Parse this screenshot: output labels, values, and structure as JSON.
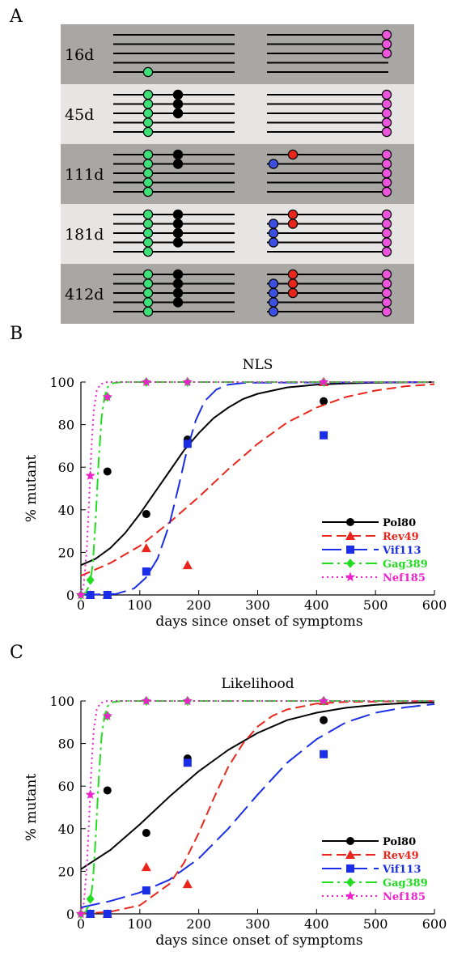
{
  "panels": {
    "a": "A",
    "b": "B",
    "c": "C"
  },
  "panelA": {
    "rows": [
      {
        "label": "16d",
        "shade": "#a9a7a4",
        "lines": 5,
        "green": [
          4
        ],
        "black": [],
        "blue": [],
        "red": [],
        "magenta": [
          0,
          1,
          2
        ]
      },
      {
        "label": "45d",
        "shade": "#e6e5e3",
        "lines": 5,
        "green": [
          0,
          1,
          2,
          3,
          4
        ],
        "black": [
          0,
          1,
          2
        ],
        "blue": [],
        "red": [],
        "magenta": [
          0,
          1,
          2,
          3,
          4
        ]
      },
      {
        "label": "111d",
        "shade": "#a9a7a4",
        "lines": 5,
        "green": [
          0,
          1,
          2,
          3,
          4
        ],
        "black": [
          0,
          1
        ],
        "blue": [
          1
        ],
        "red": [
          0
        ],
        "magenta": [
          0,
          1,
          2,
          3,
          4
        ]
      },
      {
        "label": "181d",
        "shade": "#e6e5e3",
        "lines": 5,
        "green": [
          0,
          1,
          2,
          3,
          4
        ],
        "black": [
          0,
          1,
          2,
          3
        ],
        "blue": [
          1,
          2,
          3
        ],
        "red": [
          0,
          1
        ],
        "magenta": [
          0,
          1,
          2,
          3,
          4
        ]
      },
      {
        "label": "412d",
        "shade": "#a9a7a4",
        "lines": 5,
        "green": [
          0,
          1,
          2,
          3,
          4
        ],
        "black": [
          0,
          1,
          2,
          3
        ],
        "blue": [
          1,
          2,
          3,
          4
        ],
        "red": [
          0,
          1,
          2
        ],
        "magenta": [
          0,
          1,
          2,
          3,
          4
        ]
      }
    ]
  },
  "colors": {
    "Pol80": "#000000",
    "Rev49": "#e8261c",
    "Vif113": "#1a2ee6",
    "Gag389": "#22dd22",
    "Nef185": "#ee22cc",
    "dotGreen": "#3fe07a",
    "dotBlack": "#000000",
    "dotBlue": "#3b4fe0",
    "dotRed": "#e8261c",
    "dotMagenta": "#ee55dd"
  },
  "chart_data": [
    {
      "type": "line",
      "title": "NLS",
      "xlabel": "days since onset of symptoms",
      "ylabel": "% mutant",
      "xlim": [
        0,
        600
      ],
      "ylim": [
        0,
        100
      ],
      "xticks": [
        0,
        100,
        200,
        300,
        400,
        500,
        600
      ],
      "yticks": [
        0,
        20,
        40,
        60,
        80,
        100
      ],
      "legend_position": "right",
      "series": [
        {
          "name": "Pol80",
          "marker": "circle",
          "dash": "solid",
          "points": [
            [
              16,
              0
            ],
            [
              45,
              58
            ],
            [
              111,
              38
            ],
            [
              181,
              73
            ],
            [
              412,
              91
            ]
          ],
          "curve": [
            [
              0,
              14
            ],
            [
              25,
              17
            ],
            [
              50,
              22
            ],
            [
              75,
              29
            ],
            [
              100,
              38
            ],
            [
              125,
              48
            ],
            [
              150,
              58
            ],
            [
              175,
              68
            ],
            [
              200,
              76
            ],
            [
              225,
              83
            ],
            [
              250,
              88
            ],
            [
              275,
              92
            ],
            [
              300,
              94.5
            ],
            [
              350,
              97.5
            ],
            [
              400,
              98.8
            ],
            [
              450,
              99.4
            ],
            [
              500,
              99.7
            ],
            [
              600,
              100
            ]
          ]
        },
        {
          "name": "Rev49",
          "marker": "triangle",
          "dash": "dashed",
          "points": [
            [
              16,
              0
            ],
            [
              45,
              0
            ],
            [
              111,
              22
            ],
            [
              181,
              14
            ],
            [
              412,
              100
            ]
          ],
          "curve": [
            [
              0,
              9
            ],
            [
              50,
              15
            ],
            [
              100,
              23
            ],
            [
              150,
              34
            ],
            [
              200,
              46
            ],
            [
              250,
              59
            ],
            [
              300,
              71
            ],
            [
              350,
              81
            ],
            [
              400,
              88
            ],
            [
              450,
              93
            ],
            [
              500,
              96
            ],
            [
              550,
              98
            ],
            [
              600,
              99
            ]
          ]
        },
        {
          "name": "Vif113",
          "marker": "square",
          "dash": "longdash",
          "points": [
            [
              16,
              0
            ],
            [
              45,
              0
            ],
            [
              111,
              11
            ],
            [
              181,
              71
            ],
            [
              412,
              75
            ]
          ],
          "curve": [
            [
              0,
              0
            ],
            [
              60,
              0.5
            ],
            [
              90,
              3
            ],
            [
              110,
              8
            ],
            [
              130,
              17
            ],
            [
              150,
              33
            ],
            [
              165,
              50
            ],
            [
              180,
              68
            ],
            [
              195,
              82
            ],
            [
              210,
              91
            ],
            [
              230,
              96.5
            ],
            [
              250,
              98.8
            ],
            [
              280,
              99.7
            ],
            [
              600,
              100
            ]
          ]
        },
        {
          "name": "Gag389",
          "marker": "diamond",
          "dash": "dashdot",
          "points": [
            [
              0,
              0
            ],
            [
              16,
              7
            ],
            [
              45,
              93
            ],
            [
              111,
              100
            ],
            [
              181,
              100
            ],
            [
              412,
              100
            ]
          ],
          "curve": [
            [
              0,
              0
            ],
            [
              8,
              1
            ],
            [
              15,
              5
            ],
            [
              20,
              14
            ],
            [
              25,
              35
            ],
            [
              30,
              62
            ],
            [
              35,
              83
            ],
            [
              40,
              93
            ],
            [
              45,
              97.5
            ],
            [
              55,
              99.5
            ],
            [
              70,
              100
            ],
            [
              600,
              100
            ]
          ]
        },
        {
          "name": "Nef185",
          "marker": "star",
          "dash": "dotted",
          "points": [
            [
              0,
              0
            ],
            [
              16,
              56
            ],
            [
              45,
              93
            ],
            [
              111,
              100
            ],
            [
              181,
              100
            ],
            [
              412,
              100
            ]
          ],
          "curve": [
            [
              0,
              0
            ],
            [
              5,
              5
            ],
            [
              10,
              22
            ],
            [
              14,
              45
            ],
            [
              18,
              70
            ],
            [
              22,
              87
            ],
            [
              27,
              96
            ],
            [
              33,
              99
            ],
            [
              45,
              100
            ],
            [
              600,
              100
            ]
          ]
        }
      ]
    },
    {
      "type": "line",
      "title": "Likelihood",
      "xlabel": "days since onset of symptoms",
      "ylabel": "% mutant",
      "xlim": [
        0,
        600
      ],
      "ylim": [
        0,
        100
      ],
      "xticks": [
        0,
        100,
        200,
        300,
        400,
        500,
        600
      ],
      "yticks": [
        0,
        20,
        40,
        60,
        80,
        100
      ],
      "legend_position": "right",
      "series": [
        {
          "name": "Pol80",
          "marker": "circle",
          "dash": "solid",
          "points": [
            [
              16,
              0
            ],
            [
              45,
              58
            ],
            [
              111,
              38
            ],
            [
              181,
              73
            ],
            [
              412,
              91
            ]
          ],
          "curve": [
            [
              0,
              21
            ],
            [
              50,
              30
            ],
            [
              100,
              42
            ],
            [
              150,
              55
            ],
            [
              200,
              67
            ],
            [
              250,
              77
            ],
            [
              300,
              85
            ],
            [
              350,
              91
            ],
            [
              400,
              94.5
            ],
            [
              450,
              96.8
            ],
            [
              500,
              98.2
            ],
            [
              550,
              99
            ],
            [
              600,
              99.4
            ]
          ]
        },
        {
          "name": "Rev49",
          "marker": "triangle",
          "dash": "dashed",
          "points": [
            [
              16,
              0
            ],
            [
              45,
              0
            ],
            [
              111,
              22
            ],
            [
              181,
              14
            ],
            [
              412,
              100
            ]
          ],
          "curve": [
            [
              0,
              0
            ],
            [
              50,
              1
            ],
            [
              100,
              4
            ],
            [
              150,
              14
            ],
            [
              175,
              24
            ],
            [
              200,
              38
            ],
            [
              225,
              54
            ],
            [
              250,
              69
            ],
            [
              275,
              80
            ],
            [
              300,
              88
            ],
            [
              325,
              93
            ],
            [
              350,
              96
            ],
            [
              400,
              98.8
            ],
            [
              450,
              99.6
            ],
            [
              600,
              100
            ]
          ]
        },
        {
          "name": "Vif113",
          "marker": "square",
          "dash": "longdash",
          "points": [
            [
              16,
              0
            ],
            [
              45,
              0
            ],
            [
              111,
              11
            ],
            [
              181,
              71
            ],
            [
              412,
              75
            ]
          ],
          "curve": [
            [
              0,
              3
            ],
            [
              50,
              6
            ],
            [
              100,
              10
            ],
            [
              150,
              16
            ],
            [
              200,
              26
            ],
            [
              250,
              40
            ],
            [
              300,
              56
            ],
            [
              350,
              71
            ],
            [
              400,
              82
            ],
            [
              450,
              90
            ],
            [
              500,
              94.5
            ],
            [
              550,
              97
            ],
            [
              600,
              98.5
            ]
          ]
        },
        {
          "name": "Gag389",
          "marker": "diamond",
          "dash": "dashdot",
          "points": [
            [
              0,
              0
            ],
            [
              16,
              7
            ],
            [
              45,
              93
            ],
            [
              111,
              100
            ],
            [
              181,
              100
            ],
            [
              412,
              100
            ]
          ],
          "curve": [
            [
              0,
              0
            ],
            [
              8,
              1
            ],
            [
              15,
              5
            ],
            [
              20,
              14
            ],
            [
              25,
              35
            ],
            [
              30,
              62
            ],
            [
              35,
              83
            ],
            [
              40,
              93
            ],
            [
              45,
              97.5
            ],
            [
              55,
              99.5
            ],
            [
              70,
              100
            ],
            [
              600,
              100
            ]
          ]
        },
        {
          "name": "Nef185",
          "marker": "star",
          "dash": "dotted",
          "points": [
            [
              0,
              0
            ],
            [
              16,
              56
            ],
            [
              45,
              93
            ],
            [
              111,
              100
            ],
            [
              181,
              100
            ],
            [
              412,
              100
            ]
          ],
          "curve": [
            [
              0,
              0
            ],
            [
              5,
              5
            ],
            [
              10,
              22
            ],
            [
              14,
              45
            ],
            [
              18,
              70
            ],
            [
              22,
              87
            ],
            [
              27,
              96
            ],
            [
              33,
              99
            ],
            [
              45,
              100
            ],
            [
              600,
              100
            ]
          ]
        }
      ]
    }
  ]
}
